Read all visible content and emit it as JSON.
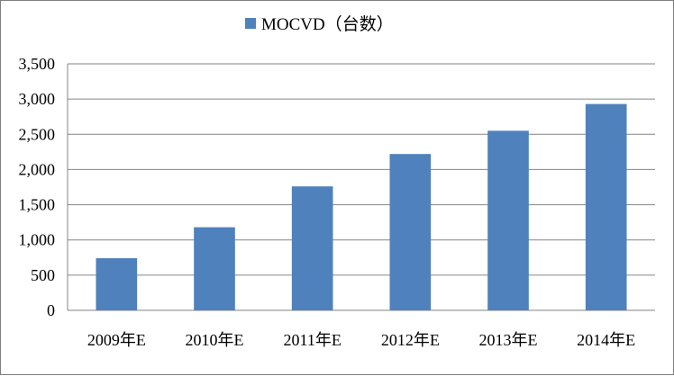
{
  "chart_data": {
    "type": "bar",
    "categories": [
      "2009年E",
      "2010年E",
      "2011年E",
      "2012年E",
      "2013年E",
      "2014年E"
    ],
    "series": [
      {
        "name": "MOCVD（台数）",
        "values": [
          740,
          1180,
          1760,
          2220,
          2550,
          2930
        ]
      }
    ],
    "ylim": [
      0,
      3500
    ],
    "yticks": [
      0,
      500,
      1000,
      1500,
      2000,
      2500,
      3000,
      3500
    ],
    "ytick_labels": [
      "0",
      "500",
      "1,000",
      "1,500",
      "2,000",
      "2,500",
      "3,000",
      "3,500"
    ],
    "grid": true,
    "legend_position": "top-center",
    "colors": {
      "bar": "#4f81bd",
      "grid": "#868686",
      "axis": "#868686"
    }
  }
}
